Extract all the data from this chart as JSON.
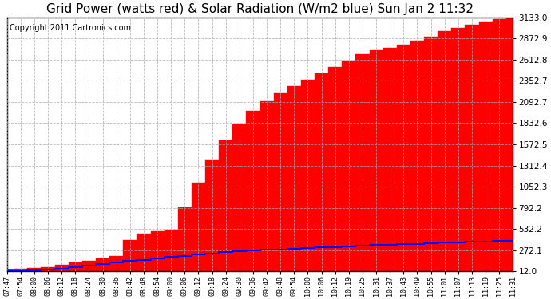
{
  "title": "Grid Power (watts red) & Solar Radiation (W/m2 blue) Sun Jan 2 11:32",
  "copyright_text": "Copyright 2011 Cartronics.com",
  "yticks": [
    12.0,
    272.1,
    532.2,
    792.2,
    1052.3,
    1312.4,
    1572.5,
    1832.6,
    2092.7,
    2352.7,
    2612.8,
    2872.9,
    3133.0
  ],
  "ymin": 12.0,
  "ymax": 3133.0,
  "bg_color": "#ffffff",
  "grid_color": "#aaaaaa",
  "red_fill_color": "#ff0000",
  "blue_line_color": "#0000ff",
  "title_fontsize": 11,
  "copyright_fontsize": 7,
  "x_labels": [
    "07:47",
    "07:54",
    "08:00",
    "08:06",
    "08:12",
    "08:18",
    "08:24",
    "08:30",
    "08:36",
    "08:42",
    "08:48",
    "08:54",
    "09:00",
    "09:06",
    "09:12",
    "09:18",
    "09:24",
    "09:30",
    "09:36",
    "09:42",
    "09:48",
    "09:54",
    "10:00",
    "10:06",
    "10:12",
    "10:19",
    "10:25",
    "10:31",
    "10:37",
    "10:43",
    "10:49",
    "10:55",
    "11:01",
    "11:07",
    "11:13",
    "11:19",
    "11:25",
    "11:31"
  ],
  "red_data": [
    30,
    45,
    55,
    65,
    90,
    120,
    145,
    170,
    200,
    400,
    480,
    500,
    520,
    800,
    1100,
    1380,
    1620,
    1820,
    1980,
    2100,
    2200,
    2290,
    2370,
    2440,
    2520,
    2600,
    2680,
    2730,
    2760,
    2800,
    2850,
    2900,
    2960,
    3000,
    3040,
    3080,
    3110,
    3133
  ],
  "blue_data": [
    12,
    18,
    25,
    35,
    48,
    63,
    80,
    98,
    118,
    138,
    155,
    172,
    188,
    203,
    218,
    232,
    245,
    256,
    266,
    275,
    283,
    291,
    298,
    305,
    312,
    320,
    328,
    335,
    340,
    346,
    352,
    358,
    363,
    368,
    373,
    378,
    383,
    390
  ]
}
